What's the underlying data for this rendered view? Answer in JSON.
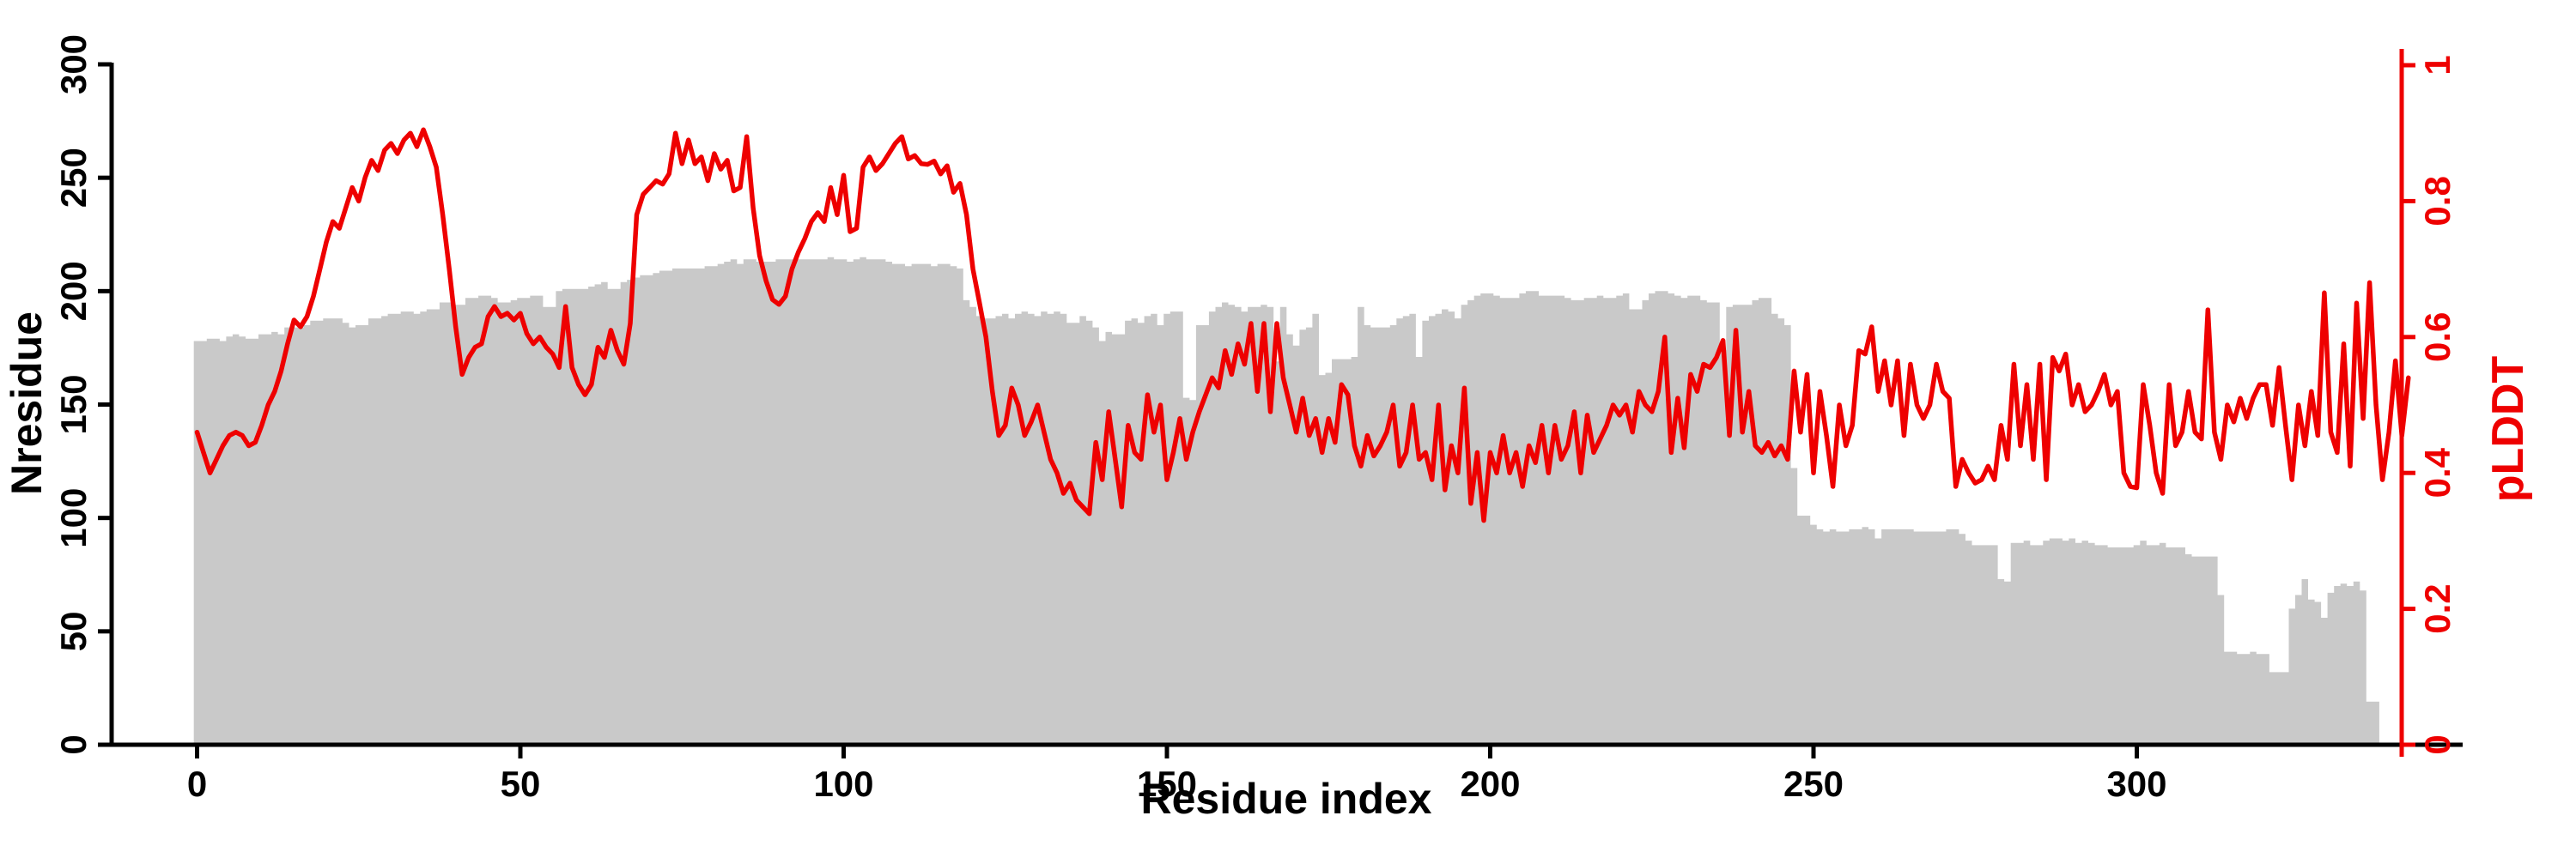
{
  "figure": {
    "xlabel": "Residue index",
    "ylabel_left": "Nresidue",
    "ylabel_right": "pLDDT",
    "colors": {
      "bars": "#c9c9c9",
      "line": "#ee0000",
      "axis": "#000000",
      "right_axis": "#ee0000",
      "background": "#ffffff"
    }
  },
  "chart_data": {
    "type": "bar",
    "note": "gray bars = Nresidue per residue index (left axis 0-300); red line = pLDDT per residue (right axis 0-1)",
    "x_ticks": [
      0,
      50,
      100,
      150,
      200,
      250,
      300
    ],
    "x_tick_labels": [
      "0",
      "50",
      "100",
      "150",
      "200",
      "250",
      "300"
    ],
    "left_ticks": [
      0,
      50,
      100,
      150,
      200,
      250,
      300
    ],
    "left_tick_labels": [
      "0",
      "50",
      "100",
      "150",
      "200",
      "250",
      "300"
    ],
    "left_range": [
      0,
      300
    ],
    "right_ticks": [
      0,
      0.2,
      0.4,
      0.6,
      0.8,
      1
    ],
    "right_tick_labels": [
      "0",
      "0.2",
      "0.4",
      "0.6",
      "0.8",
      "1"
    ],
    "right_range": [
      0,
      1
    ],
    "x_range": [
      0,
      350
    ],
    "grid": false,
    "legend": "none",
    "series": [
      {
        "name": "Nresidue",
        "type": "bar",
        "axis": "left",
        "x_start": 0,
        "values": [
          178,
          178,
          179,
          179,
          178,
          180,
          181,
          180,
          179,
          179,
          181,
          181,
          182,
          181,
          184,
          184,
          184,
          185,
          187,
          187,
          188,
          188,
          188,
          186,
          184,
          185,
          185,
          188,
          188,
          189,
          190,
          190,
          191,
          191,
          190,
          191,
          192,
          192,
          195,
          195,
          194,
          194,
          197,
          197,
          198,
          198,
          197,
          195,
          195,
          196,
          197,
          197,
          198,
          198,
          193,
          193,
          200,
          201,
          201,
          201,
          201,
          202,
          203,
          204,
          201,
          201,
          204,
          205,
          206,
          207,
          207,
          208,
          209,
          209,
          210,
          210,
          210,
          210,
          210,
          211,
          211,
          212,
          213,
          214,
          212,
          214,
          214,
          213,
          213,
          213,
          214,
          214,
          214,
          214,
          214,
          214,
          214,
          214,
          215,
          214,
          214,
          213,
          214,
          215,
          214,
          214,
          214,
          213,
          212,
          212,
          211,
          212,
          212,
          212,
          211,
          212,
          212,
          211,
          210,
          196,
          193,
          189,
          188,
          188,
          189,
          190,
          188,
          190,
          191,
          190,
          189,
          191,
          190,
          191,
          190,
          186,
          186,
          189,
          187,
          184,
          178,
          182,
          181,
          181,
          187,
          188,
          186,
          189,
          190,
          185,
          190,
          191,
          191,
          153,
          152,
          185,
          185,
          191,
          193,
          195,
          194,
          193,
          191,
          193,
          193,
          194,
          193,
          169,
          193,
          181,
          176,
          183,
          184,
          190,
          163,
          164,
          170,
          170,
          170,
          171,
          193,
          185,
          184,
          184,
          184,
          185,
          188,
          189,
          190,
          171,
          187,
          189,
          190,
          192,
          191,
          188,
          194,
          196,
          198,
          199,
          199,
          198,
          197,
          197,
          197,
          199,
          200,
          200,
          198,
          198,
          198,
          198,
          197,
          196,
          196,
          197,
          197,
          198,
          197,
          197,
          198,
          199,
          192,
          192,
          196,
          199,
          200,
          200,
          199,
          198,
          197,
          198,
          198,
          196,
          195,
          195,
          174,
          193,
          194,
          194,
          194,
          196,
          197,
          197,
          190,
          188,
          185,
          122,
          101,
          101,
          97,
          95,
          94,
          95,
          94,
          94,
          95,
          95,
          96,
          95,
          91,
          95,
          95,
          95,
          95,
          95,
          94,
          94,
          94,
          94,
          94,
          95,
          95,
          93,
          90,
          88,
          88,
          88,
          88,
          73,
          72,
          89,
          89,
          90,
          88,
          88,
          90,
          91,
          91,
          90,
          91,
          89,
          90,
          89,
          88,
          88,
          87,
          87,
          87,
          87,
          88,
          90,
          88,
          88,
          89,
          87,
          87,
          87,
          84,
          83,
          83,
          83,
          83,
          66,
          41,
          41,
          40,
          40,
          41,
          40,
          40,
          32,
          32,
          32,
          60,
          66,
          73,
          64,
          63,
          56,
          67,
          70,
          71,
          70,
          72,
          68,
          19,
          19
        ]
      },
      {
        "name": "pLDDT",
        "type": "line",
        "axis": "right",
        "x_start": 0,
        "values": [
          0.46,
          0.43,
          0.4,
          0.42,
          0.44,
          0.455,
          0.46,
          0.455,
          0.44,
          0.445,
          0.47,
          0.5,
          0.52,
          0.55,
          0.59,
          0.625,
          0.615,
          0.63,
          0.66,
          0.7,
          0.74,
          0.77,
          0.76,
          0.79,
          0.82,
          0.8,
          0.835,
          0.86,
          0.845,
          0.875,
          0.885,
          0.87,
          0.89,
          0.9,
          0.88,
          0.905,
          0.88,
          0.85,
          0.78,
          0.7,
          0.615,
          0.545,
          0.57,
          0.585,
          0.59,
          0.63,
          0.645,
          0.63,
          0.635,
          0.625,
          0.635,
          0.605,
          0.59,
          0.6,
          0.585,
          0.575,
          0.555,
          0.645,
          0.555,
          0.53,
          0.515,
          0.53,
          0.585,
          0.57,
          0.61,
          0.58,
          0.56,
          0.62,
          0.78,
          0.81,
          0.82,
          0.83,
          0.825,
          0.84,
          0.9,
          0.855,
          0.89,
          0.855,
          0.865,
          0.83,
          0.87,
          0.847,
          0.86,
          0.815,
          0.82,
          0.895,
          0.79,
          0.72,
          0.683,
          0.655,
          0.648,
          0.66,
          0.7,
          0.725,
          0.745,
          0.77,
          0.783,
          0.77,
          0.82,
          0.78,
          0.838,
          0.755,
          0.76,
          0.85,
          0.865,
          0.845,
          0.855,
          0.87,
          0.885,
          0.895,
          0.862,
          0.867,
          0.855,
          0.854,
          0.859,
          0.84,
          0.852,
          0.813,
          0.826,
          0.78,
          0.7,
          0.651,
          0.6,
          0.52,
          0.455,
          0.47,
          0.525,
          0.5,
          0.455,
          0.475,
          0.5,
          0.46,
          0.42,
          0.4,
          0.37,
          0.385,
          0.36,
          0.35,
          0.34,
          0.445,
          0.39,
          0.49,
          0.42,
          0.35,
          0.47,
          0.43,
          0.42,
          0.515,
          0.46,
          0.5,
          0.39,
          0.43,
          0.48,
          0.42,
          0.46,
          0.49,
          0.515,
          0.54,
          0.525,
          0.58,
          0.545,
          0.59,
          0.56,
          0.62,
          0.52,
          0.62,
          0.49,
          0.62,
          0.54,
          0.5,
          0.46,
          0.51,
          0.455,
          0.48,
          0.43,
          0.48,
          0.445,
          0.53,
          0.515,
          0.44,
          0.41,
          0.455,
          0.425,
          0.44,
          0.46,
          0.5,
          0.41,
          0.43,
          0.5,
          0.42,
          0.43,
          0.39,
          0.5,
          0.375,
          0.44,
          0.4,
          0.525,
          0.355,
          0.43,
          0.33,
          0.43,
          0.4,
          0.455,
          0.4,
          0.43,
          0.38,
          0.44,
          0.415,
          0.47,
          0.4,
          0.47,
          0.42,
          0.44,
          0.49,
          0.4,
          0.485,
          0.43,
          0.45,
          0.47,
          0.5,
          0.485,
          0.5,
          0.46,
          0.52,
          0.5,
          0.49,
          0.52,
          0.6,
          0.43,
          0.51,
          0.437,
          0.545,
          0.52,
          0.56,
          0.555,
          0.57,
          0.595,
          0.455,
          0.61,
          0.46,
          0.52,
          0.44,
          0.43,
          0.445,
          0.425,
          0.44,
          0.42,
          0.55,
          0.46,
          0.545,
          0.4,
          0.52,
          0.455,
          0.38,
          0.5,
          0.44,
          0.47,
          0.58,
          0.575,
          0.615,
          0.52,
          0.565,
          0.5,
          0.565,
          0.455,
          0.56,
          0.5,
          0.48,
          0.5,
          0.56,
          0.52,
          0.51,
          0.38,
          0.42,
          0.4,
          0.385,
          0.39,
          0.41,
          0.39,
          0.47,
          0.42,
          0.56,
          0.44,
          0.53,
          0.42,
          0.56,
          0.39,
          0.57,
          0.55,
          0.575,
          0.5,
          0.53,
          0.49,
          0.5,
          0.52,
          0.545,
          0.5,
          0.52,
          0.4,
          0.38,
          0.378,
          0.53,
          0.47,
          0.4,
          0.37,
          0.53,
          0.44,
          0.46,
          0.52,
          0.46,
          0.45,
          0.64,
          0.46,
          0.42,
          0.5,
          0.475,
          0.51,
          0.48,
          0.51,
          0.53,
          0.53,
          0.47,
          0.555,
          0.47,
          0.39,
          0.5,
          0.44,
          0.52,
          0.455,
          0.665,
          0.46,
          0.43,
          0.59,
          0.41,
          0.65,
          0.48,
          0.68,
          0.5,
          0.39,
          0.46,
          0.565,
          0.455,
          0.54
        ]
      }
    ]
  }
}
